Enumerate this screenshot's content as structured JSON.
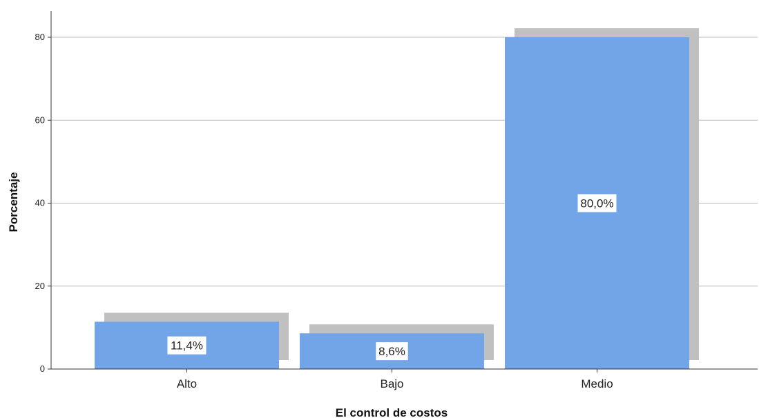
{
  "chart_data": {
    "type": "bar",
    "xlabel": "El control de costos",
    "ylabel": "Porcentaje",
    "categories": [
      "Alto",
      "Bajo",
      "Medio"
    ],
    "values": [
      11.4,
      8.6,
      80.0
    ],
    "data_labels": [
      "11,4%",
      "8,6%",
      "80,0%"
    ],
    "ylim": [
      0,
      88
    ],
    "yticks": [
      0,
      20,
      40,
      60,
      80
    ],
    "grid": true,
    "bar_color": "#72a4e8",
    "shadow_color": "#c0c0c0"
  }
}
